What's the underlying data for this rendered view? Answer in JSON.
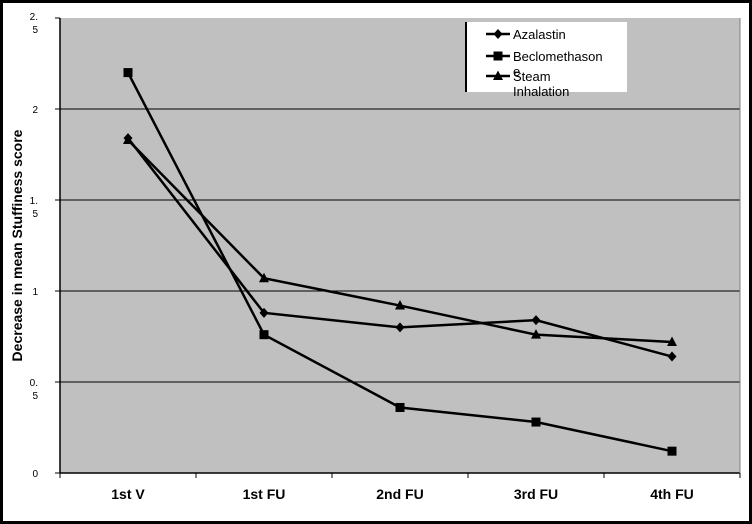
{
  "chart_data": {
    "type": "line",
    "title": "",
    "xlabel": "",
    "ylabel": "Decrease in mean Stuffiness score",
    "categories": [
      "1st V",
      "1st FU",
      "2nd FU",
      "3rd FU",
      "4th FU"
    ],
    "ylim": [
      0,
      2.5
    ],
    "yticks": [
      {
        "value": 0,
        "lines": [
          "0"
        ]
      },
      {
        "value": 0.5,
        "lines": [
          "0.",
          "5"
        ]
      },
      {
        "value": 1,
        "lines": [
          "1"
        ]
      },
      {
        "value": 1.5,
        "lines": [
          "1.",
          "5"
        ]
      },
      {
        "value": 2,
        "lines": [
          "2"
        ]
      },
      {
        "value": 2.5,
        "lines": [
          "2.",
          "5"
        ]
      }
    ],
    "grid": true,
    "legend_position": "top-right",
    "series": [
      {
        "name": "Azalastin",
        "marker": "diamond",
        "values": [
          1.84,
          0.88,
          0.8,
          0.84,
          0.64
        ]
      },
      {
        "name": "Beclomethason e",
        "marker": "square",
        "values": [
          2.2,
          0.76,
          0.36,
          0.28,
          0.12
        ]
      },
      {
        "name": "Steam Inhalation",
        "marker": "triangle",
        "values": [
          1.83,
          1.07,
          0.92,
          0.76,
          0.72
        ]
      }
    ],
    "colors": {
      "plot_background": "#c0c0c0",
      "line": "#000000",
      "grid": "#000000"
    }
  }
}
